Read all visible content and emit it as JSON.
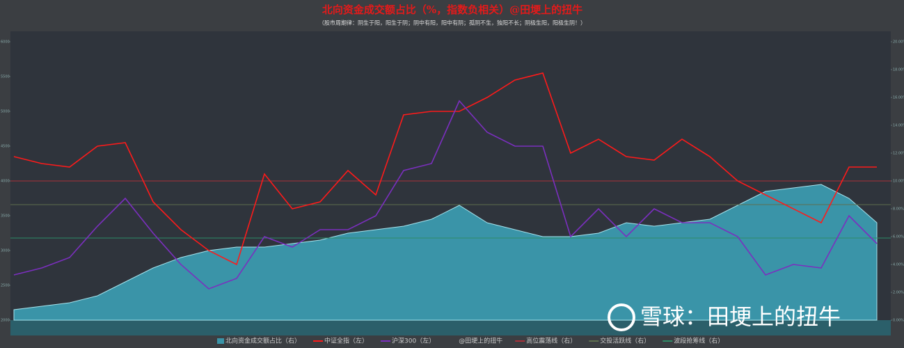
{
  "chart_data": {
    "type": "combo",
    "title": "北向资金成交额占比（%，指数负相关）@田埂上的扭牛",
    "subtitle": "（股市周期律：阴生于阳，阳生于阴；阴中有阳，阳中有阴；孤阴不生，独阳不长；阴极生阳，阳极生阴！）",
    "watermark": "雪球：田埂上的扭牛",
    "legend_note": "@田埂上的扭牛",
    "categories": [
      null,
      null,
      null,
      null,
      null,
      null,
      null,
      null,
      null,
      null,
      null,
      null,
      null,
      null,
      null,
      null,
      null,
      null,
      null,
      null,
      null,
      null,
      null,
      null,
      null,
      null,
      null,
      null,
      null,
      null,
      null,
      null
    ],
    "ylim": [
      2000,
      6150
    ],
    "yticks": [
      2000,
      2500,
      3000,
      3500,
      4000,
      4500,
      5000,
      5500,
      6000
    ],
    "y2lim": [
      0,
      20.75
    ],
    "y2ticks": [
      {
        "value": 0,
        "label": "0.00%"
      },
      {
        "value": 2,
        "label": "2.00%"
      },
      {
        "value": 4,
        "label": "4.00%"
      },
      {
        "value": 6,
        "label": "6.00%"
      },
      {
        "value": 8,
        "label": "8.00%"
      },
      {
        "value": 10,
        "label": "10.00%"
      },
      {
        "value": 12,
        "label": "12.00%"
      },
      {
        "value": 14,
        "label": "14.00%"
      },
      {
        "value": 16,
        "label": "16.00%"
      },
      {
        "value": 18,
        "label": "18.00%"
      },
      {
        "value": 20,
        "label": "20.00%"
      }
    ],
    "series": [
      {
        "name": "北向资金成交额占比（右）",
        "kind": "area",
        "axis": "y2",
        "color": "#3a94a8",
        "values": [
          0.75,
          1,
          1.25,
          1.75,
          2.75,
          3.75,
          4.5,
          5,
          5.25,
          5.25,
          5.5,
          5.75,
          6.25,
          6.5,
          6.75,
          7.25,
          8.25,
          7,
          6.5,
          6,
          6,
          6.25,
          7,
          6.75,
          7,
          7.25,
          8.25,
          9.25,
          9.5,
          9.75,
          8.75,
          7
        ]
      },
      {
        "name": "中证全指（左）",
        "kind": "line",
        "color": "#ff1a1a",
        "values": [
          4350,
          4250,
          4200,
          4500,
          4550,
          3700,
          3300,
          3000,
          2800,
          4100,
          3600,
          3700,
          4150,
          3800,
          4950,
          5000,
          5000,
          5200,
          5450,
          5550,
          4400,
          4600,
          4350,
          4300,
          4600,
          4350,
          4000,
          3800,
          3600,
          3400,
          4200,
          4200
        ]
      },
      {
        "name": "沪深300（左）",
        "kind": "line",
        "color": "#7b2fbf",
        "values": [
          2650,
          2750,
          2900,
          3350,
          3750,
          3250,
          2800,
          2450,
          2600,
          3200,
          3050,
          3300,
          3300,
          3500,
          4150,
          4250,
          5150,
          4700,
          4500,
          4500,
          3200,
          3600,
          3200,
          3600,
          3400,
          3400,
          3200,
          2650,
          2800,
          2750,
          3500,
          3100
        ]
      }
    ],
    "reference_lines": [
      {
        "name": "高位震荡线（右）",
        "value": 10,
        "color": "#a8323a"
      },
      {
        "name": "交投活跃线（右）",
        "value": 8.3,
        "color": "#5d6e4e"
      },
      {
        "name": "波段抢筹线（右）",
        "value": 5.9,
        "color": "#2e8b67"
      }
    ]
  }
}
